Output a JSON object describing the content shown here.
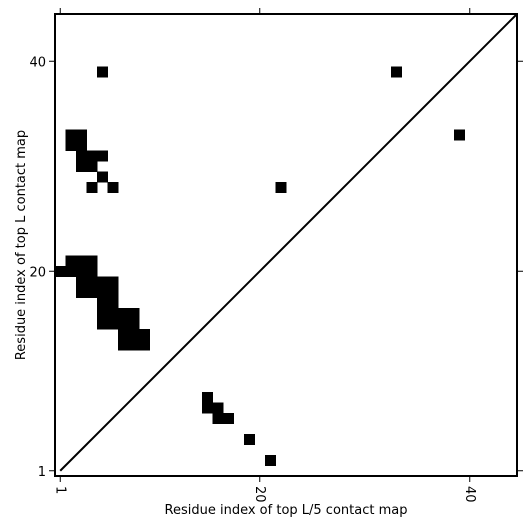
{
  "chart_data": {
    "type": "heatmap",
    "title": "",
    "xlabel": "Residue index of top L/5 contact map",
    "ylabel": "Residue index of top L contact map",
    "xlim": [
      0.5,
      44.5
    ],
    "ylim": [
      0.5,
      44.5
    ],
    "xticks": [
      1,
      20,
      40
    ],
    "yticks": [
      1,
      20,
      40
    ],
    "grid": false,
    "diagonal": true,
    "cell_color": "#000000",
    "line_color": "#000000",
    "cells": [
      [
        5,
        39
      ],
      [
        33,
        39
      ],
      [
        39,
        33
      ],
      [
        2,
        33
      ],
      [
        3,
        33
      ],
      [
        2,
        32
      ],
      [
        3,
        32
      ],
      [
        3,
        31
      ],
      [
        4,
        31
      ],
      [
        5,
        31
      ],
      [
        3,
        30
      ],
      [
        4,
        30
      ],
      [
        5,
        29
      ],
      [
        4,
        28
      ],
      [
        6,
        28
      ],
      [
        22,
        28
      ],
      [
        1,
        20
      ],
      [
        2,
        20
      ],
      [
        3,
        20
      ],
      [
        4,
        20
      ],
      [
        2,
        21
      ],
      [
        3,
        21
      ],
      [
        4,
        21
      ],
      [
        3,
        19
      ],
      [
        4,
        19
      ],
      [
        5,
        19
      ],
      [
        6,
        19
      ],
      [
        3,
        18
      ],
      [
        4,
        18
      ],
      [
        5,
        18
      ],
      [
        6,
        18
      ],
      [
        5,
        17
      ],
      [
        6,
        17
      ],
      [
        5,
        16
      ],
      [
        6,
        16
      ],
      [
        7,
        16
      ],
      [
        8,
        16
      ],
      [
        5,
        15
      ],
      [
        6,
        15
      ],
      [
        7,
        15
      ],
      [
        8,
        15
      ],
      [
        7,
        14
      ],
      [
        8,
        14
      ],
      [
        9,
        14
      ],
      [
        7,
        13
      ],
      [
        8,
        13
      ],
      [
        9,
        13
      ],
      [
        15,
        8
      ],
      [
        15,
        7
      ],
      [
        16,
        7
      ],
      [
        16,
        6
      ],
      [
        17,
        6
      ],
      [
        19,
        4
      ],
      [
        21,
        2
      ]
    ]
  }
}
